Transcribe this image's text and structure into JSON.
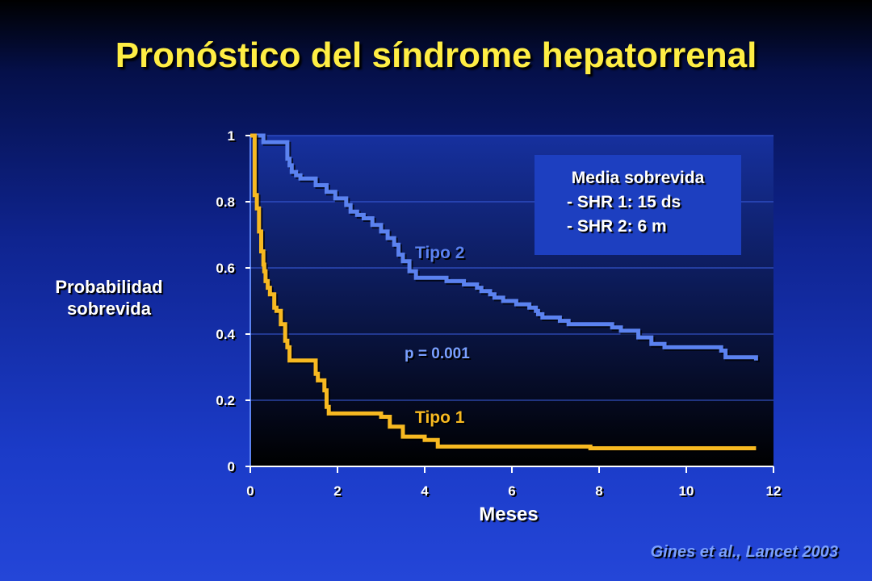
{
  "slide": {
    "title": "Pronóstico del síndrome hepatorrenal",
    "citation": "Gines et al., Lancet 2003"
  },
  "infobox": {
    "title": "Media sobrevida",
    "line1": "- SHR 1: 15 ds",
    "line2": "- SHR 2:  6 m"
  },
  "colors": {
    "tipo1": "#f7b921",
    "tipo2": "#5b82f0",
    "plot_bg_top": "#16309e",
    "plot_bg_bottom": "#000000",
    "title": "#ffee44"
  },
  "chart_data": {
    "type": "line",
    "xlabel": "Meses",
    "ylabel_lines": [
      "Probabilidad",
      "sobrevida"
    ],
    "xlim": [
      0,
      12
    ],
    "ylim": [
      0,
      1
    ],
    "xticks": [
      0,
      2,
      4,
      6,
      8,
      10,
      12
    ],
    "yticks": [
      0,
      0.2,
      0.4,
      0.6,
      0.8,
      1
    ],
    "ytick_labels": [
      "0",
      "0.2",
      "0.4",
      "0.6",
      "0.8",
      "1"
    ],
    "grid": true,
    "annotation": "p = 0.001",
    "series": [
      {
        "name": "Tipo 2",
        "step": true,
        "x": [
          0,
          0.3,
          0.85,
          0.9,
          0.95,
          1.05,
          1.15,
          1.5,
          1.75,
          1.95,
          2.2,
          2.3,
          2.45,
          2.6,
          2.8,
          3.0,
          3.15,
          3.3,
          3.4,
          3.5,
          3.65,
          3.8,
          4.5,
          4.9,
          5.2,
          5.3,
          5.5,
          5.6,
          5.8,
          6.1,
          6.3,
          6.4,
          6.55,
          6.6,
          6.7,
          7.1,
          7.3,
          8.3,
          8.5,
          8.9,
          9.2,
          9.5,
          10.8,
          10.9,
          11.6
        ],
        "y": [
          1,
          0.98,
          0.93,
          0.91,
          0.89,
          0.88,
          0.87,
          0.85,
          0.83,
          0.81,
          0.79,
          0.77,
          0.76,
          0.75,
          0.73,
          0.71,
          0.69,
          0.67,
          0.64,
          0.62,
          0.59,
          0.57,
          0.56,
          0.55,
          0.54,
          0.53,
          0.52,
          0.51,
          0.5,
          0.49,
          0.49,
          0.48,
          0.47,
          0.46,
          0.45,
          0.44,
          0.43,
          0.42,
          0.41,
          0.39,
          0.37,
          0.36,
          0.35,
          0.33,
          0.32
        ]
      },
      {
        "name": "Tipo 1",
        "step": true,
        "x": [
          0,
          0.1,
          0.15,
          0.2,
          0.25,
          0.3,
          0.32,
          0.35,
          0.4,
          0.45,
          0.55,
          0.6,
          0.7,
          0.8,
          0.85,
          0.9,
          1.5,
          1.55,
          1.7,
          1.75,
          1.8,
          3.0,
          3.2,
          3.5,
          4.0,
          4.3,
          4.6,
          5.5,
          6.0,
          7.5,
          7.8,
          8.5,
          11.6
        ],
        "y": [
          1,
          0.82,
          0.78,
          0.71,
          0.65,
          0.61,
          0.59,
          0.56,
          0.54,
          0.52,
          0.48,
          0.47,
          0.43,
          0.38,
          0.36,
          0.32,
          0.28,
          0.26,
          0.23,
          0.18,
          0.16,
          0.15,
          0.12,
          0.09,
          0.08,
          0.06,
          0.06,
          0.06,
          0.06,
          0.06,
          0.055,
          0.055,
          0.055
        ]
      }
    ]
  }
}
